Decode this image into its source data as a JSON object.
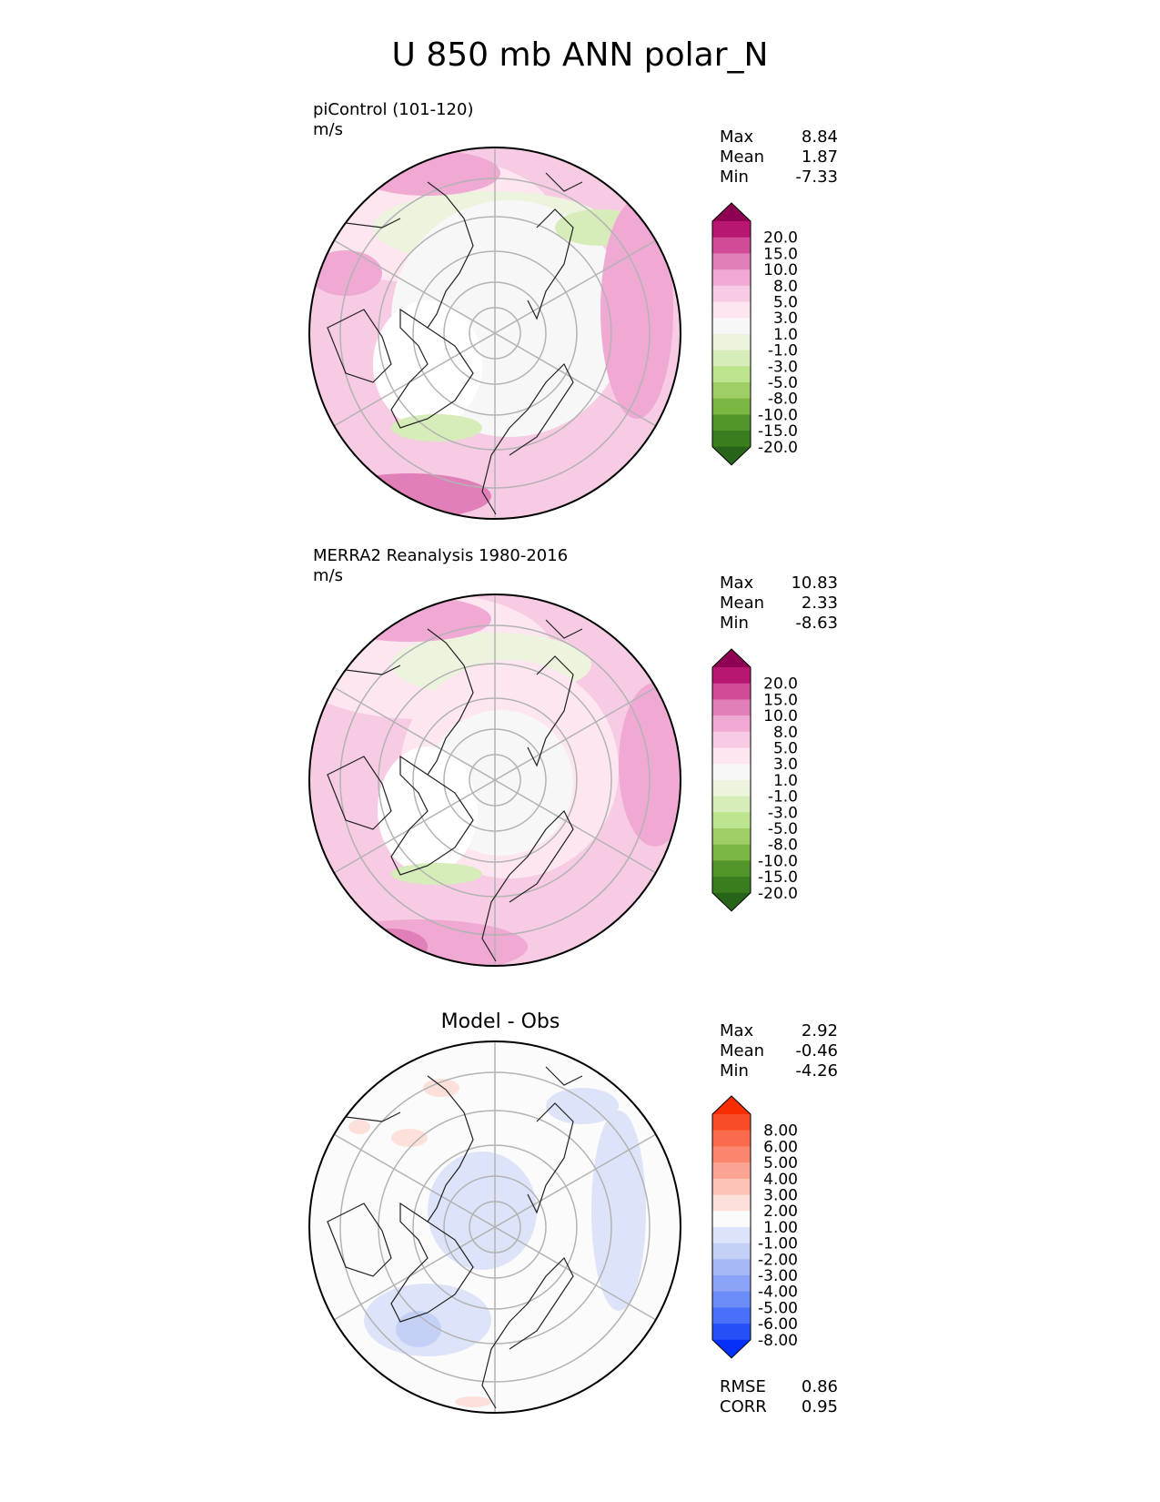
{
  "title": "U 850 mb ANN polar_N",
  "colors": {
    "diverging_pink_green": [
      "#276419",
      "#3a7d1f",
      "#52952b",
      "#7cb743",
      "#9fce66",
      "#bde58f",
      "#d6ecb9",
      "#ecf4dd",
      "#f7f7f7",
      "#fde6f0",
      "#f6cbe3",
      "#f0a9d3",
      "#e07fb8",
      "#d04c96",
      "#b81771",
      "#8e0152"
    ],
    "diverging_blue_red": [
      "#0530f8",
      "#2550f8",
      "#4a6ff8",
      "#6c8cf7",
      "#8aa3f6",
      "#a5b8f5",
      "#c4d0f6",
      "#dde4f9",
      "#fbfbfb",
      "#fde0da",
      "#fcc2b6",
      "#fca494",
      "#fb866f",
      "#fa6a4c",
      "#f94b27",
      "#f72d02"
    ],
    "grid": "#b3b3b3",
    "coast": "#222222"
  },
  "panels": [
    {
      "name": "test",
      "subtitle_line1": "piControl (101-120)",
      "subtitle_line2": "m/s",
      "stats": {
        "max_label": "Max",
        "max": "8.84",
        "mean_label": "Mean",
        "mean": "1.87",
        "min_label": "Min",
        "min": "-7.33"
      },
      "colorbar_ticks": [
        "20.0",
        "15.0",
        "10.0",
        "8.0",
        "5.0",
        "3.0",
        "1.0",
        "-1.0",
        "-3.0",
        "-5.0",
        "-8.0",
        "-10.0",
        "-15.0",
        "-20.0"
      ]
    },
    {
      "name": "reference",
      "subtitle_line1": "MERRA2 Reanalysis 1980-2016",
      "subtitle_line2": "m/s",
      "stats": {
        "max_label": "Max",
        "max": "10.83",
        "mean_label": "Mean",
        "mean": "2.33",
        "min_label": "Min",
        "min": "-8.63"
      },
      "colorbar_ticks": [
        "20.0",
        "15.0",
        "10.0",
        "8.0",
        "5.0",
        "3.0",
        "1.0",
        "-1.0",
        "-3.0",
        "-5.0",
        "-8.0",
        "-10.0",
        "-15.0",
        "-20.0"
      ]
    },
    {
      "name": "difference",
      "title": "Model - Obs",
      "stats": {
        "max_label": "Max",
        "max": "2.92",
        "mean_label": "Mean",
        "mean": "-0.46",
        "min_label": "Min",
        "min": "-4.26"
      },
      "colorbar_ticks": [
        "8.00",
        "6.00",
        "5.00",
        "4.00",
        "3.00",
        "2.00",
        "1.00",
        "-1.00",
        "-2.00",
        "-3.00",
        "-4.00",
        "-5.00",
        "-6.00",
        "-8.00"
      ],
      "metrics": {
        "rmse_label": "RMSE",
        "rmse": "0.86",
        "corr_label": "CORR",
        "corr": "0.95"
      }
    }
  ],
  "chart_data": [
    {
      "type": "heatmap",
      "projection": "north polar stereographic",
      "variable": "U 850 mb",
      "units": "m/s",
      "series_name": "piControl (101-120)",
      "max": 8.84,
      "mean": 1.87,
      "min": -7.33,
      "levels": [
        -20,
        -15,
        -10,
        -8,
        -5,
        -3,
        -1,
        1,
        3,
        5,
        8,
        10,
        15,
        20
      ]
    },
    {
      "type": "heatmap",
      "projection": "north polar stereographic",
      "variable": "U 850 mb",
      "units": "m/s",
      "series_name": "MERRA2 Reanalysis 1980-2016",
      "max": 10.83,
      "mean": 2.33,
      "min": -8.63,
      "levels": [
        -20,
        -15,
        -10,
        -8,
        -5,
        -3,
        -1,
        1,
        3,
        5,
        8,
        10,
        15,
        20
      ]
    },
    {
      "type": "heatmap",
      "projection": "north polar stereographic",
      "variable": "U 850 mb",
      "series_name": "Model - Obs",
      "max": 2.92,
      "mean": -0.46,
      "min": -4.26,
      "levels": [
        -8,
        -6,
        -5,
        -4,
        -3,
        -2,
        -1,
        1,
        2,
        3,
        4,
        5,
        6,
        8
      ],
      "rmse": 0.86,
      "corr": 0.95
    }
  ]
}
